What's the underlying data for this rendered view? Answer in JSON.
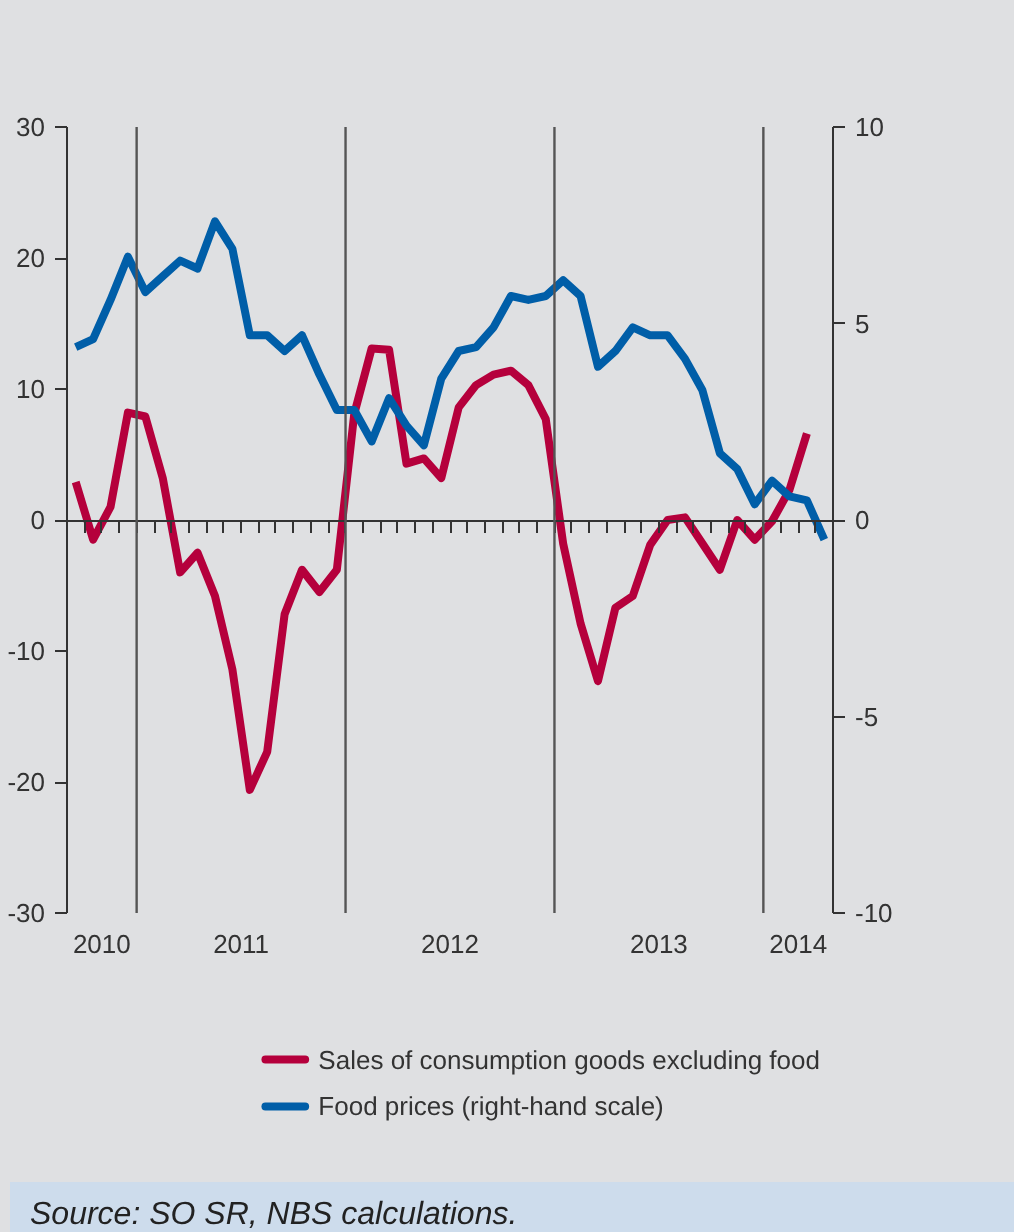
{
  "chart_data": {
    "type": "line",
    "x": [
      "2010-09",
      "2010-10",
      "2010-11",
      "2010-12",
      "2011-01",
      "2011-02",
      "2011-03",
      "2011-04",
      "2011-05",
      "2011-06",
      "2011-07",
      "2011-08",
      "2011-09",
      "2011-10",
      "2011-11",
      "2011-12",
      "2012-01",
      "2012-02",
      "2012-03",
      "2012-04",
      "2012-05",
      "2012-06",
      "2012-07",
      "2012-08",
      "2012-09",
      "2012-10",
      "2012-11",
      "2012-12",
      "2013-01",
      "2013-02",
      "2013-03",
      "2013-04",
      "2013-05",
      "2013-06",
      "2013-07",
      "2013-08",
      "2013-09",
      "2013-10",
      "2013-11",
      "2013-12",
      "2014-01",
      "2014-02",
      "2014-03",
      "2014-04"
    ],
    "series": [
      {
        "name": "Sales of consumption goods excluding food",
        "color": "#b5003c",
        "values": [
          2.9,
          -1.5,
          1.0,
          8.2,
          7.9,
          3.2,
          -4.0,
          -2.5,
          -5.8,
          -11.4,
          -20.6,
          -17.7,
          -7.2,
          -3.8,
          -5.5,
          -3.8,
          8.1,
          13.1,
          13.0,
          4.3,
          4.7,
          3.2,
          8.6,
          10.3,
          11.1,
          11.4,
          10.3,
          7.7,
          -1.8,
          -7.9,
          -12.3,
          -6.7,
          -5.8,
          -1.9,
          0,
          0.2,
          -1.8,
          -3.8,
          0,
          -1.5,
          -0.1,
          2.3,
          6.6,
          null
        ]
      },
      {
        "name": "Food prices (right-hand scale)",
        "color": "#005ea8",
        "axis": "y2",
        "values": [
          4.4,
          4.6,
          5.6,
          6.7,
          5.8,
          6.2,
          6.6,
          6.4,
          7.6,
          6.9,
          4.7,
          4.7,
          4.3,
          4.7,
          3.7,
          2.8,
          2.8,
          2.0,
          3.1,
          2.4,
          1.9,
          3.6,
          4.3,
          4.4,
          4.9,
          5.7,
          5.6,
          5.7,
          6.1,
          5.7,
          3.9,
          4.3,
          4.9,
          4.7,
          4.7,
          4.1,
          3.3,
          1.7,
          1.3,
          0.4,
          1.0,
          0.6,
          0.5,
          -0.5
        ]
      }
    ],
    "xlim": [
      "2010-08-16",
      "2014-04-16"
    ],
    "xticks": [
      {
        "value": "2010-09-16",
        "label": null
      },
      {
        "value": "2010-10-16",
        "label": "2010"
      },
      {
        "value": "2010-11-16",
        "label": null
      },
      {
        "value": "2010-12-16",
        "label": null
      },
      {
        "value": "2011-01-16",
        "label": null
      },
      {
        "value": "2011-02-16",
        "label": null
      },
      {
        "value": "2011-03-16",
        "label": null
      },
      {
        "value": "2011-04-16",
        "label": null
      },
      {
        "value": "2011-05-16",
        "label": null
      },
      {
        "value": "2011-06-16",
        "label": "2011"
      },
      {
        "value": "2011-07-16",
        "label": null
      },
      {
        "value": "2011-08-16",
        "label": null
      },
      {
        "value": "2011-09-16",
        "label": null
      },
      {
        "value": "2011-10-16",
        "label": null
      },
      {
        "value": "2011-11-16",
        "label": null
      },
      {
        "value": "2011-12-16",
        "label": null
      },
      {
        "value": "2012-01-16",
        "label": null
      },
      {
        "value": "2012-02-16",
        "label": null
      },
      {
        "value": "2012-03-16",
        "label": null
      },
      {
        "value": "2012-04-16",
        "label": null
      },
      {
        "value": "2012-05-16",
        "label": null
      },
      {
        "value": "2012-06-16",
        "label": "2012"
      },
      {
        "value": "2012-07-16",
        "label": null
      },
      {
        "value": "2012-08-16",
        "label": null
      },
      {
        "value": "2012-09-16",
        "label": null
      },
      {
        "value": "2012-10-16",
        "label": null
      },
      {
        "value": "2012-11-16",
        "label": null
      },
      {
        "value": "2012-12-16",
        "label": null
      },
      {
        "value": "2013-01-16",
        "label": null
      },
      {
        "value": "2013-02-16",
        "label": null
      },
      {
        "value": "2013-03-16",
        "label": null
      },
      {
        "value": "2013-04-16",
        "label": null
      },
      {
        "value": "2013-05-16",
        "label": null
      },
      {
        "value": "2013-06-16",
        "label": "2013"
      },
      {
        "value": "2013-07-16",
        "label": null
      },
      {
        "value": "2013-08-16",
        "label": null
      },
      {
        "value": "2013-09-16",
        "label": null
      },
      {
        "value": "2013-10-16",
        "label": null
      },
      {
        "value": "2013-11-16",
        "label": null
      },
      {
        "value": "2013-12-16",
        "label": null
      },
      {
        "value": "2014-01-16",
        "label": null
      },
      {
        "value": "2014-02-16",
        "label": "2014"
      },
      {
        "value": "2014-03-16",
        "label": null
      }
    ],
    "ylim": [
      -30,
      30
    ],
    "yticks": [
      -30,
      -20,
      -10,
      0,
      10,
      20,
      30
    ],
    "y2lim": [
      -10,
      10
    ],
    "y2ticks": [
      -10,
      -5,
      0,
      5,
      10
    ],
    "ref_lines": [
      {
        "axis": "x",
        "value": "2010-12-16",
        "label": null,
        "color": "#555555"
      },
      {
        "axis": "x",
        "value": "2011-12-16",
        "label": null,
        "color": "#555555"
      },
      {
        "axis": "x",
        "value": "2012-12-16",
        "label": null,
        "color": "#555555"
      },
      {
        "axis": "x",
        "value": "2013-12-16",
        "label": null,
        "color": "#555555"
      }
    ],
    "grid": false,
    "legend": "bottom",
    "marker": "none",
    "line_style": "solid",
    "annotations": [
      "Source: SO SR, NBS calculations."
    ]
  }
}
